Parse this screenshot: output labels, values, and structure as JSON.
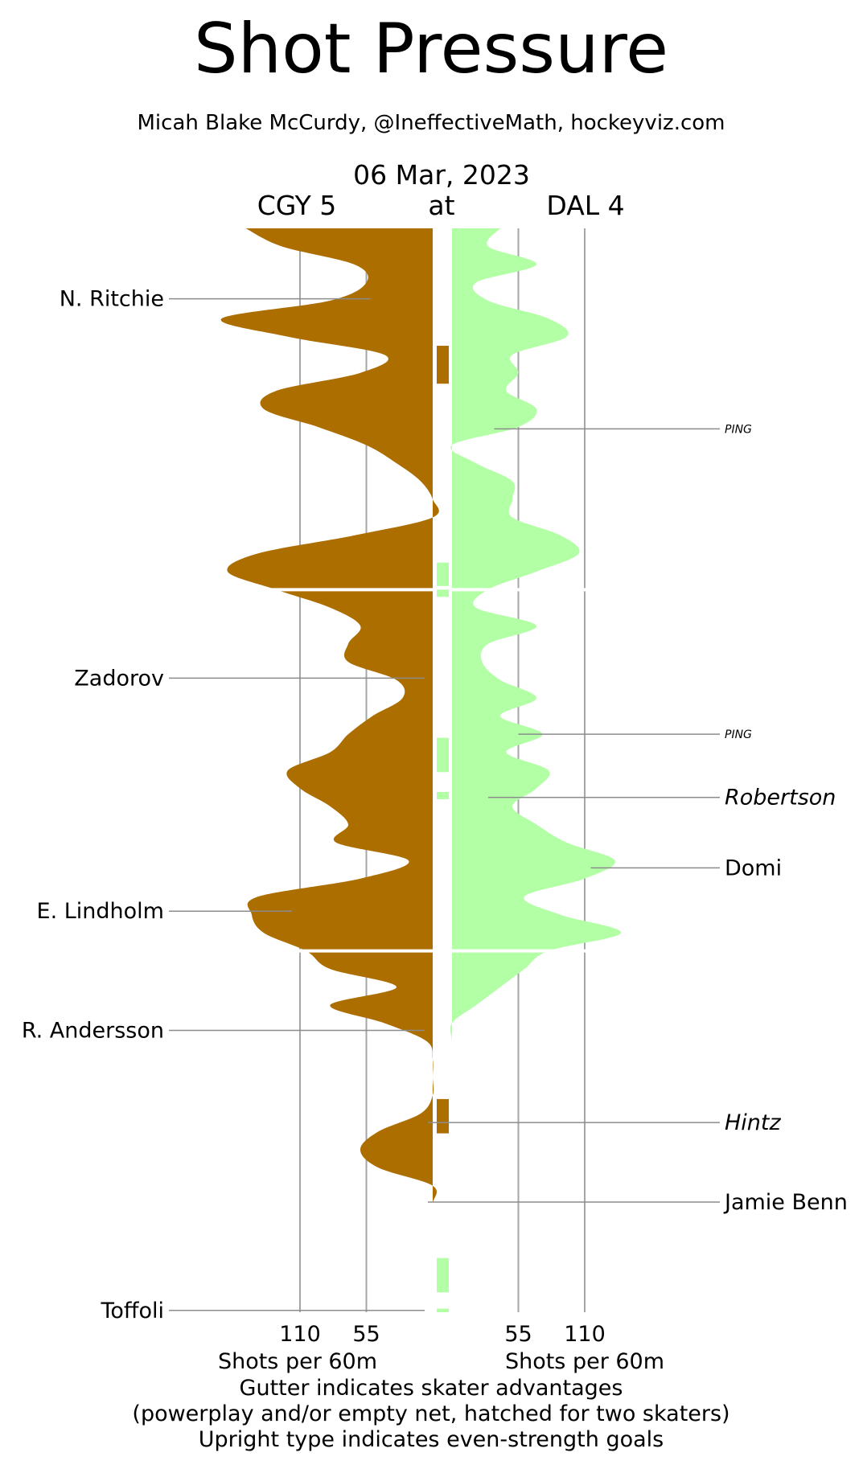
{
  "header": {
    "title": "Shot Pressure",
    "subtitle": "Micah Blake McCurdy, @IneffectiveMath, hockeyviz.com",
    "date": "06 Mar, 2023",
    "away_label": "CGY 5",
    "at_label": "at",
    "home_label": "DAL 4"
  },
  "footer": {
    "left_axis_label": "Shots per 60m",
    "right_axis_label": "Shots per 60m",
    "note_line1": "Gutter indicates skater advantages",
    "note_line2": "(powerplay and/or empty net, hatched for two skaters)",
    "note_line3": "Upright type indicates even-strength goals"
  },
  "colors": {
    "away": "#ad6e00",
    "home": "#b3ffa6",
    "grid": "#a6a6a6",
    "leader": "#8c8c8c"
  },
  "chart_data": {
    "type": "area",
    "title": "Shot Pressure",
    "x_unit": "game minutes (1-60)",
    "axis_ticks": [
      55,
      110
    ],
    "xlabel": "Shots per 60m",
    "periods": 3,
    "series": [
      {
        "name": "CGY 5",
        "side": "left",
        "x": [
          0,
          1,
          2,
          3,
          4,
          5,
          6,
          7,
          8,
          9,
          10,
          11,
          12,
          13,
          14,
          15,
          16,
          17,
          18,
          19,
          20,
          21,
          22,
          23,
          24,
          25,
          26,
          27,
          28,
          29,
          30,
          31,
          32,
          33,
          34,
          35,
          36,
          37,
          38,
          39,
          40,
          41,
          42,
          43,
          44,
          45,
          46,
          47,
          48,
          49,
          50,
          51,
          52,
          53,
          54,
          55,
          56,
          57,
          58,
          59,
          60
        ],
        "values": [
          155,
          125,
          65,
          55,
          85,
          175,
          120,
          40,
          60,
          130,
          140,
          95,
          55,
          30,
          10,
          0,
          0,
          65,
          145,
          170,
          130,
          85,
          60,
          70,
          70,
          30,
          25,
          50,
          70,
          85,
          120,
          110,
          85,
          70,
          80,
          20,
          60,
          145,
          150,
          140,
          105,
          85,
          30,
          85,
          40,
          5,
          0,
          0,
          0,
          10,
          45,
          60,
          45,
          0,
          0,
          0,
          0,
          0,
          0,
          0,
          0
        ],
        "even_strength_goals": [
          "N. Ritchie",
          "Zadorov",
          "E. Lindholm",
          "R. Andersson",
          "Toffoli"
        ]
      },
      {
        "name": "DAL 4",
        "side": "right",
        "x": [
          0,
          1,
          2,
          3,
          4,
          5,
          6,
          7,
          8,
          9,
          10,
          11,
          12,
          13,
          14,
          15,
          16,
          17,
          18,
          19,
          20,
          21,
          22,
          23,
          24,
          25,
          26,
          27,
          28,
          29,
          30,
          31,
          32,
          33,
          34,
          35,
          36,
          37,
          38,
          39,
          40,
          41,
          42,
          43,
          44,
          45,
          46,
          47,
          48,
          49,
          50,
          51,
          52,
          53,
          54,
          55,
          56,
          57,
          58,
          59,
          60
        ],
        "values": [
          40,
          30,
          70,
          20,
          30,
          80,
          95,
          50,
          55,
          45,
          70,
          55,
          0,
          20,
          50,
          50,
          50,
          90,
          105,
          70,
          30,
          20,
          70,
          30,
          25,
          40,
          70,
          40,
          75,
          45,
          80,
          70,
          50,
          70,
          95,
          135,
          110,
          60,
          90,
          140,
          80,
          60,
          40,
          20,
          0,
          0,
          0,
          0,
          0,
          0,
          0,
          0,
          0,
          0,
          0,
          0,
          0,
          0,
          0,
          0,
          0
        ],
        "even_strength_goals": [
          "Domi",
          "Jamie Benn"
        ],
        "other_goals": [
          "Robertson",
          "Hintz"
        ]
      }
    ],
    "gutter": [
      {
        "team": "CGY 5",
        "start": 6.5,
        "end": 8.6
      },
      {
        "team": "DAL 4",
        "start": 18.5,
        "end": 19.8
      },
      {
        "team": "DAL 4",
        "start": 20.0,
        "end": 20.4
      },
      {
        "team": "DAL 4",
        "start": 28.2,
        "end": 30.1
      },
      {
        "team": "DAL 4",
        "start": 31.2,
        "end": 31.6
      },
      {
        "team": "CGY 5",
        "start": 48.2,
        "end": 50.1
      },
      {
        "team": "DAL 4",
        "start": 57.0,
        "end": 58.9
      },
      {
        "team": "DAL 4",
        "start": 59.8,
        "end": 60.0
      }
    ],
    "events": [
      {
        "label": "N. Ritchie",
        "side": "left",
        "minute": 3.9,
        "italic": false
      },
      {
        "label": "PING",
        "side": "right",
        "minute": 11.1,
        "italic": true,
        "small": true
      },
      {
        "label": "Zadorov",
        "side": "left",
        "minute": 24.9,
        "italic": false
      },
      {
        "label": "PING",
        "side": "right",
        "minute": 28.0,
        "italic": true,
        "small": true
      },
      {
        "label": "Robertson",
        "side": "right",
        "minute": 31.5,
        "italic": true
      },
      {
        "label": "Domi",
        "side": "right",
        "minute": 35.4,
        "italic": false
      },
      {
        "label": "E. Lindholm",
        "side": "left",
        "minute": 37.8,
        "italic": false
      },
      {
        "label": "R. Andersson",
        "side": "left",
        "minute": 44.4,
        "italic": false
      },
      {
        "label": "Hintz",
        "side": "right",
        "minute": 49.5,
        "italic": true
      },
      {
        "label": "Jamie Benn",
        "side": "right",
        "minute": 53.9,
        "italic": false
      },
      {
        "label": "Toffoli",
        "side": "left",
        "minute": 59.9,
        "italic": false
      }
    ]
  }
}
